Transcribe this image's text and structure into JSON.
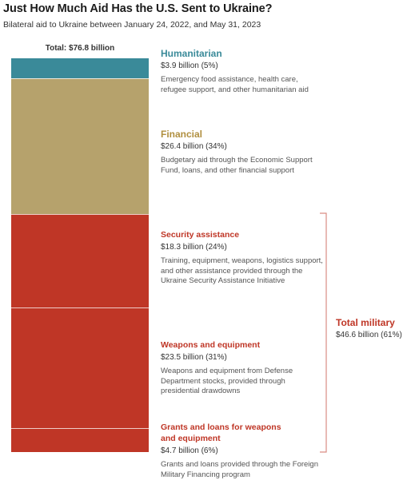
{
  "title": "Just How Much Aid Has the U.S. Sent to Ukraine?",
  "subtitle": "Bilateral aid to Ukraine between January 24, 2022, and May 31, 2023",
  "total_label": "Total: $76.8 billion",
  "colors": {
    "humanitarian": "#3a8a99",
    "financial": "#b6a26c",
    "military": "#bf3626"
  },
  "chart_data": {
    "type": "bar",
    "stacked": true,
    "unit": "billion USD",
    "total": 76.8,
    "categories": [
      {
        "name": "Humanitarian",
        "value": 3.9,
        "percent": 5,
        "value_label": "$3.9 billion (5%)",
        "description": "Emergency food assistance, health care, refugee support, and other humanitarian aid",
        "color": "#3a8a99"
      },
      {
        "name": "Financial",
        "value": 26.4,
        "percent": 34,
        "value_label": "$26.4 billion (34%)",
        "description": "Budgetary aid through the Economic Support Fund, loans, and other financial support",
        "color": "#b6a26c"
      },
      {
        "name": "Security assistance",
        "value": 18.3,
        "percent": 24,
        "value_label": "$18.3 billion (24%)",
        "description": "Training, equipment, weapons, logistics support, and other assistance provided through the Ukraine Security Assistance Initiative",
        "color": "#bf3626"
      },
      {
        "name": "Weapons and equipment",
        "value": 23.5,
        "percent": 31,
        "value_label": "$23.5 billion (31%)",
        "description": "Weapons and equipment from Defense Department stocks, provided through presidential drawdowns",
        "color": "#bf3626"
      },
      {
        "name": "Grants and loans for weapons and equipment",
        "value": 4.7,
        "percent": 6,
        "value_label": "$4.7 billion (6%)",
        "description": "Grants and loans provided through the Foreign Military Financing program",
        "color": "#bf3626"
      }
    ],
    "group": {
      "name": "Total military",
      "value": 46.6,
      "percent": 61,
      "value_label": "$46.6 billion (61%)",
      "members": [
        2,
        3,
        4
      ]
    }
  }
}
